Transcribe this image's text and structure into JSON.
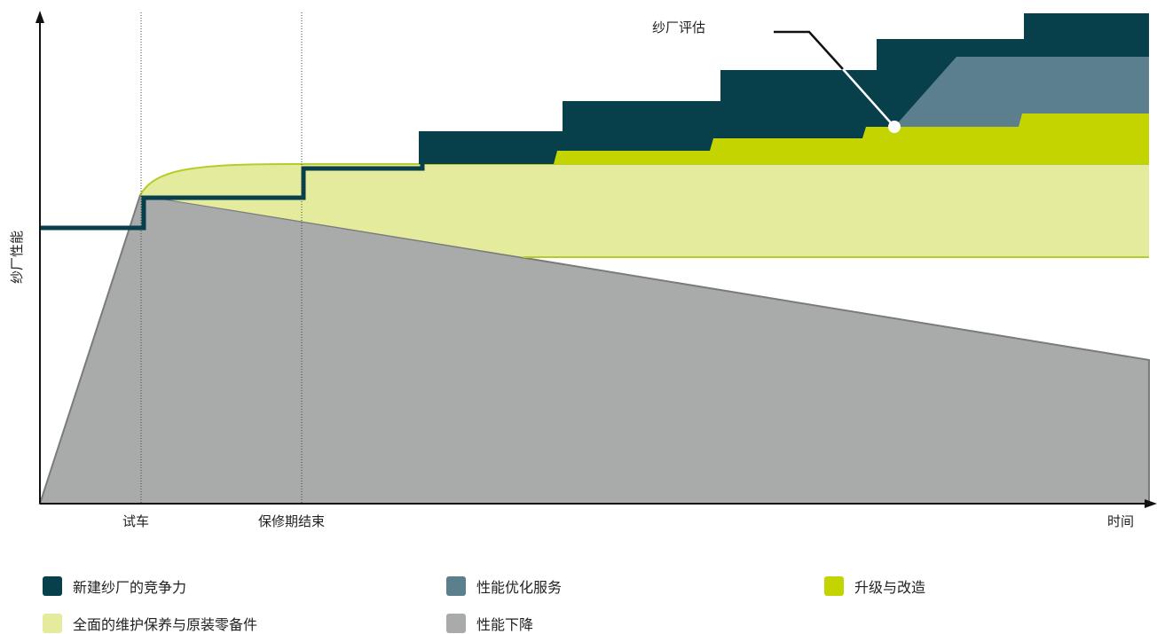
{
  "diagram": {
    "y_axis_label": "纱厂性能",
    "x_axis_label": "时间",
    "x_markers": [
      "试车",
      "保修期结束"
    ],
    "callout": "纱厂评估"
  },
  "legend": [
    {
      "label": "新建纱厂的竞争力",
      "color": "#073f4b"
    },
    {
      "label": "性能优化服务",
      "color": "#5b7f8d"
    },
    {
      "label": "升级与改造",
      "color": "#c4d400"
    },
    {
      "label": "全面的维护保养与原装零备件",
      "color": "#e5eb9c"
    },
    {
      "label": "性能下降",
      "color": "#a9abab"
    }
  ],
  "colors": {
    "axis": "#111111",
    "decline": "#a9abab",
    "decline_edge": "#7a7c7c",
    "maintenance": "#e5eb9c",
    "maintenance_edge": "#b6cc2a",
    "upgrade": "#c4d400",
    "optimization": "#5b7f8d",
    "competitiveness": "#073f4b"
  },
  "icons": [
    "y-axis-arrow-icon",
    "x-axis-arrow-icon",
    "callout-dot-icon"
  ]
}
